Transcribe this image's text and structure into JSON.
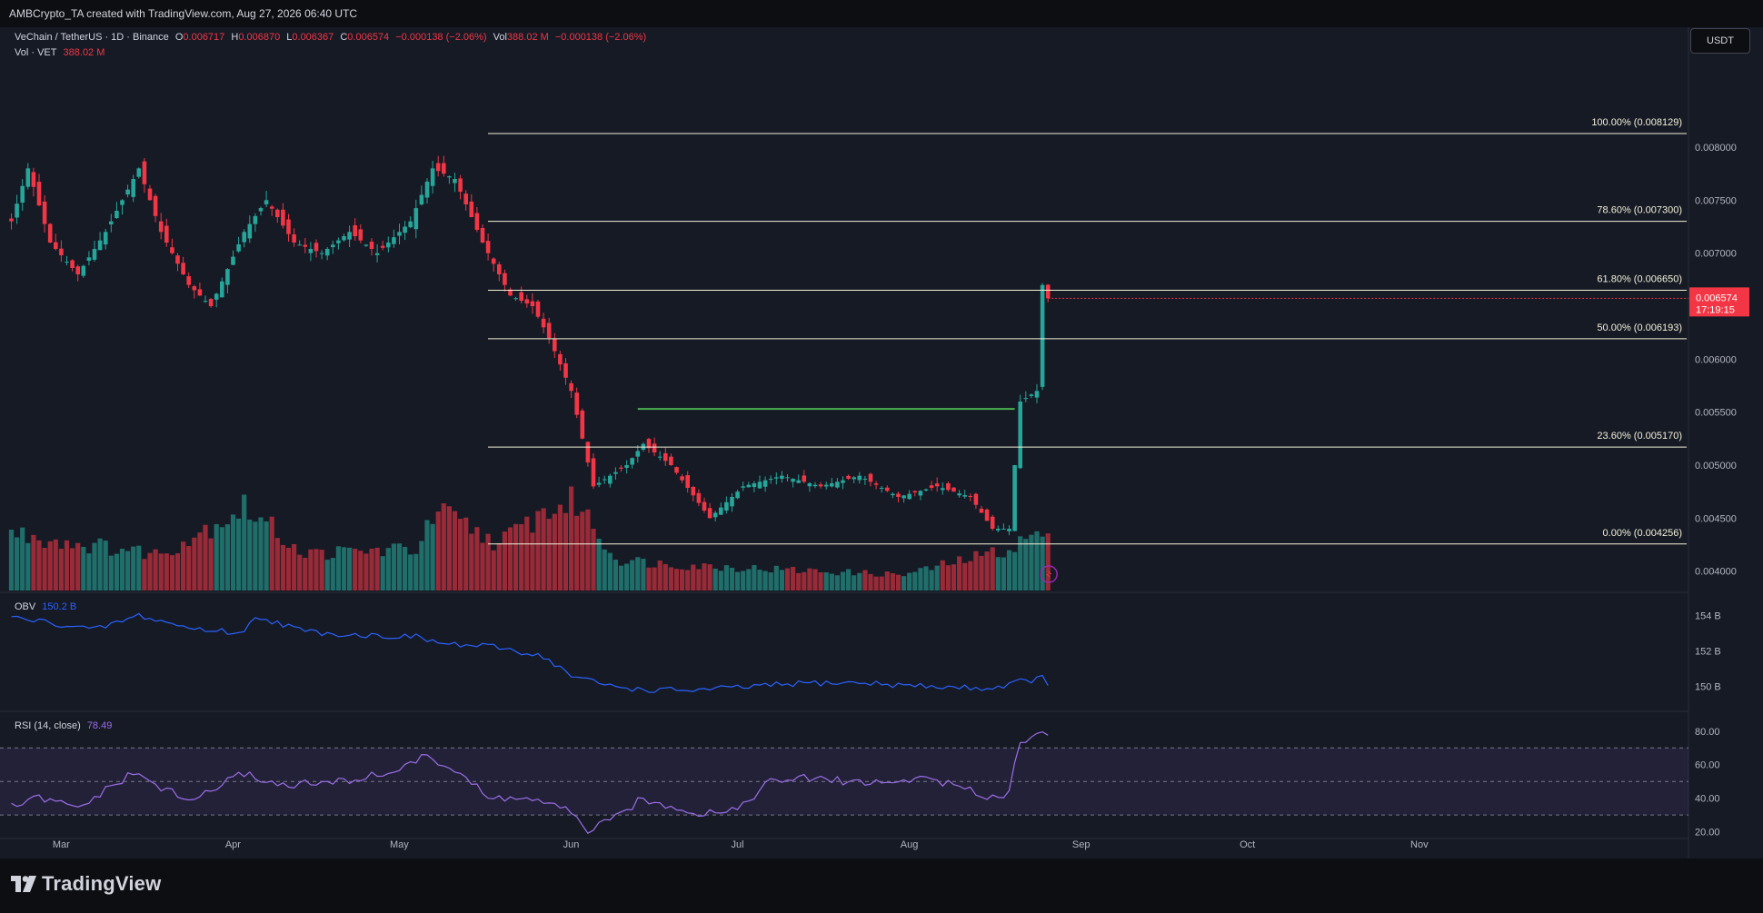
{
  "header": {
    "attribution": "AMBCrypto_TA created with TradingView.com, Aug 27, 2026 06:40 UTC"
  },
  "legend": {
    "symbol": "VeChain / TetherUS · 1D · Binance",
    "o_label": "O",
    "o": "0.006717",
    "h_label": "H",
    "h": "0.006870",
    "l_label": "L",
    "l": "0.006367",
    "c_label": "C",
    "c": "0.006574",
    "change": "−0.000138 (−2.06%)",
    "vol_label": "Vol",
    "vol": "388.02 M",
    "vol_change": "−0.000138 (−2.06%)",
    "vol_row_label": "Vol · VET",
    "vol_row_value": "388.02 M"
  },
  "currency_button": "USDT",
  "price_tag": {
    "price": "0.006574",
    "countdown": "17:19:15"
  },
  "colors": {
    "up": "#26a69a",
    "down": "#f23645",
    "background": "#161a25",
    "fib": "#f2f0d8",
    "breakout": "#4caf50",
    "obv": "#2962ff",
    "rsi": "#9c6ee8"
  },
  "icons": [
    "tradingview-logo-icon",
    "replay-icon"
  ],
  "footer": {
    "brand": "TradingView"
  },
  "chart_data": [
    {
      "type": "candlestick",
      "title": "VeChain / TetherUS · 1D · Binance",
      "ylim": [
        0.0038,
        0.0086
      ],
      "yticks": [
        "0.008000",
        "0.007500",
        "0.007000",
        "0.006500",
        "0.006000",
        "0.005500",
        "0.005000",
        "0.004500",
        "0.004000"
      ],
      "xticks": [
        "Mar",
        "Apr",
        "May",
        "Jun",
        "Jul",
        "Aug",
        "Sep",
        "Oct",
        "Nov"
      ],
      "fibonacci": [
        {
          "label": "100.00% (0.008129)",
          "value": 0.008129
        },
        {
          "label": "78.60% (0.007300)",
          "value": 0.0073
        },
        {
          "label": "61.80% (0.006650)",
          "value": 0.00665
        },
        {
          "label": "50.00% (0.006193)",
          "value": 0.006193
        },
        {
          "label": "23.60% (0.005170)",
          "value": 0.00517
        },
        {
          "label": "0.00% (0.004256)",
          "value": 0.004256
        }
      ],
      "horizontal_level": {
        "value": 0.00553,
        "from": "2026-06-14",
        "to": "2026-08-21"
      },
      "closes_anchor": [
        [
          "2026-02-21",
          0.0073
        ],
        [
          "2026-02-24",
          0.0078
        ],
        [
          "2026-02-28",
          0.0071
        ],
        [
          "2026-03-05",
          0.0068
        ],
        [
          "2026-03-10",
          0.0072
        ],
        [
          "2026-03-16",
          0.0078
        ],
        [
          "2026-03-20",
          0.0072
        ],
        [
          "2026-03-25",
          0.0067
        ],
        [
          "2026-03-29",
          0.0065
        ],
        [
          "2026-04-04",
          0.0072
        ],
        [
          "2026-04-08",
          0.0075
        ],
        [
          "2026-04-13",
          0.0071
        ],
        [
          "2026-04-18",
          0.007
        ],
        [
          "2026-04-23",
          0.0072
        ],
        [
          "2026-04-28",
          0.007
        ],
        [
          "2026-05-04",
          0.0073
        ],
        [
          "2026-05-08",
          0.0078
        ],
        [
          "2026-05-12",
          0.0077
        ],
        [
          "2026-05-17",
          0.0071
        ],
        [
          "2026-05-22",
          0.0066
        ],
        [
          "2026-05-26",
          0.0065
        ],
        [
          "2026-05-29",
          0.0062
        ],
        [
          "2026-06-02",
          0.0057
        ],
        [
          "2026-06-06",
          0.0048
        ],
        [
          "2026-06-12",
          0.005
        ],
        [
          "2026-06-15",
          0.0052
        ],
        [
          "2026-06-20",
          0.005
        ],
        [
          "2026-06-27",
          0.0045
        ],
        [
          "2026-07-03",
          0.0048
        ],
        [
          "2026-07-10",
          0.0049
        ],
        [
          "2026-07-17",
          0.0048
        ],
        [
          "2026-07-24",
          0.0049
        ],
        [
          "2026-07-31",
          0.0047
        ],
        [
          "2026-08-07",
          0.0048
        ],
        [
          "2026-08-13",
          0.0047
        ],
        [
          "2026-08-17",
          0.0044
        ],
        [
          "2026-08-20",
          0.0044
        ],
        [
          "2026-08-21",
          0.005
        ],
        [
          "2026-08-22",
          0.0056
        ],
        [
          "2026-08-25",
          0.0057
        ],
        [
          "2026-08-26",
          0.0067
        ],
        [
          "2026-08-27",
          0.006574
        ]
      ]
    },
    {
      "type": "bar",
      "title": "Vol · VET",
      "series": [
        {
          "values_anchor": [
            [
              "2026-02-21",
              0.55
            ],
            [
              "2026-03-05",
              0.45
            ],
            [
              "2026-03-20",
              0.35
            ],
            [
              "2026-04-04",
              0.8
            ],
            [
              "2026-04-15",
              0.35
            ],
            [
              "2026-05-05",
              0.4
            ],
            [
              "2026-05-09",
              0.75
            ],
            [
              "2026-05-20",
              0.45
            ],
            [
              "2026-05-28",
              0.75
            ],
            [
              "2026-06-03",
              0.85
            ],
            [
              "2026-06-10",
              0.3
            ],
            [
              "2026-06-20",
              0.25
            ],
            [
              "2026-07-10",
              0.2
            ],
            [
              "2026-08-01",
              0.15
            ],
            [
              "2026-08-20",
              0.4
            ],
            [
              "2026-08-25",
              0.55
            ],
            [
              "2026-08-27",
              0.5
            ]
          ]
        }
      ]
    },
    {
      "type": "line",
      "title": "OBV",
      "legend_value": "150.2 B",
      "yticks": [
        "154 B",
        "152 B",
        "150 B"
      ],
      "ylim": [
        148.6,
        154.8
      ],
      "series": [
        {
          "name": "OBV",
          "points": [
            [
              "2026-02-21",
              153.9
            ],
            [
              "2026-02-28",
              153.6
            ],
            [
              "2026-03-08",
              153.2
            ],
            [
              "2026-03-16",
              154.0
            ],
            [
              "2026-03-25",
              153.3
            ],
            [
              "2026-04-04",
              153.0
            ],
            [
              "2026-04-06",
              154.0
            ],
            [
              "2026-04-15",
              153.1
            ],
            [
              "2026-04-25",
              152.9
            ],
            [
              "2026-05-05",
              152.8
            ],
            [
              "2026-05-10",
              152.4
            ],
            [
              "2026-05-20",
              152.2
            ],
            [
              "2026-05-28",
              151.7
            ],
            [
              "2026-06-02",
              150.6
            ],
            [
              "2026-06-08",
              150.1
            ],
            [
              "2026-06-15",
              149.8
            ],
            [
              "2026-06-25",
              149.8
            ],
            [
              "2026-07-05",
              150.0
            ],
            [
              "2026-07-15",
              150.2
            ],
            [
              "2026-07-25",
              150.2
            ],
            [
              "2026-08-05",
              150.0
            ],
            [
              "2026-08-17",
              149.9
            ],
            [
              "2026-08-22",
              150.3
            ],
            [
              "2026-08-25",
              150.4
            ],
            [
              "2026-08-26",
              150.5
            ],
            [
              "2026-08-27",
              150.2
            ]
          ]
        }
      ]
    },
    {
      "type": "line",
      "title": "RSI (14, close)",
      "legend_value": "78.49",
      "yticks": [
        "80.00",
        "60.00",
        "40.00",
        "20.00"
      ],
      "ylim": [
        16,
        88
      ],
      "bands": [
        30,
        50,
        70
      ],
      "series": [
        {
          "name": "RSI (14, close)",
          "points": [
            [
              "2026-02-21",
              35
            ],
            [
              "2026-02-26",
              40
            ],
            [
              "2026-03-05",
              34
            ],
            [
              "2026-03-15",
              55
            ],
            [
              "2026-03-25",
              38
            ],
            [
              "2026-04-04",
              55
            ],
            [
              "2026-04-10",
              48
            ],
            [
              "2026-04-20",
              49
            ],
            [
              "2026-04-30",
              55
            ],
            [
              "2026-05-07",
              65
            ],
            [
              "2026-05-13",
              55
            ],
            [
              "2026-05-18",
              40
            ],
            [
              "2026-05-25",
              40
            ],
            [
              "2026-06-01",
              33
            ],
            [
              "2026-06-05",
              21
            ],
            [
              "2026-06-10",
              28
            ],
            [
              "2026-06-14",
              38
            ],
            [
              "2026-06-20",
              36
            ],
            [
              "2026-06-25",
              31
            ],
            [
              "2026-07-02",
              34
            ],
            [
              "2026-07-08",
              50
            ],
            [
              "2026-07-15",
              52
            ],
            [
              "2026-07-22",
              50
            ],
            [
              "2026-07-30",
              49
            ],
            [
              "2026-08-05",
              53
            ],
            [
              "2026-08-12",
              45
            ],
            [
              "2026-08-17",
              41
            ],
            [
              "2026-08-20",
              43
            ],
            [
              "2026-08-21",
              61
            ],
            [
              "2026-08-22",
              75
            ],
            [
              "2026-08-25",
              77
            ],
            [
              "2026-08-26",
              82
            ],
            [
              "2026-08-27",
              78.49
            ]
          ]
        }
      ]
    }
  ]
}
